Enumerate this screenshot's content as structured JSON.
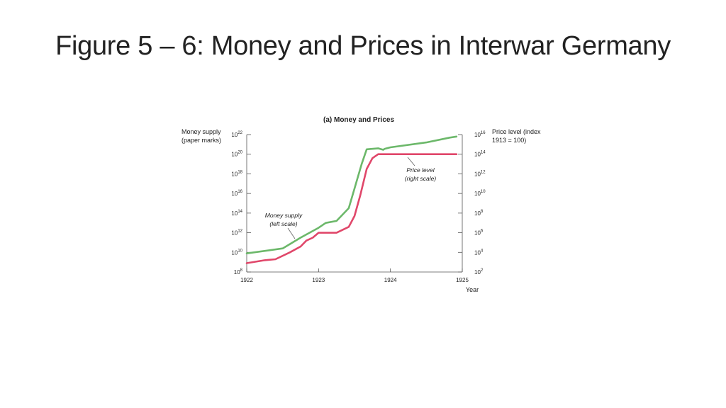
{
  "slide": {
    "title": "Figure 5 – 6: Money and Prices in Interwar Germany"
  },
  "colors": {
    "money_line": "#6cb86a",
    "price_line": "#e0476a"
  },
  "chart_data": {
    "type": "line",
    "title": "(a) Money and Prices",
    "xlabel": "Year",
    "x_ticks": [
      "1922",
      "1923",
      "1924",
      "1925"
    ],
    "xlim": [
      1922,
      1925
    ],
    "left_axis": {
      "label_line1": "Money supply",
      "label_line2": "(paper marks)",
      "scale": "log",
      "ylim_exponent": [
        8,
        22
      ],
      "ticks": [
        {
          "exp": 8,
          "base": "10",
          "sup": "8"
        },
        {
          "exp": 10,
          "base": "10",
          "sup": "10"
        },
        {
          "exp": 12,
          "base": "10",
          "sup": "12"
        },
        {
          "exp": 14,
          "base": "10",
          "sup": "14"
        },
        {
          "exp": 16,
          "base": "10",
          "sup": "16"
        },
        {
          "exp": 18,
          "base": "10",
          "sup": "18"
        },
        {
          "exp": 20,
          "base": "10",
          "sup": "20"
        },
        {
          "exp": 22,
          "base": "10",
          "sup": "22"
        }
      ]
    },
    "right_axis": {
      "label_line1": "Price level (index",
      "label_line2": "1913 = 100)",
      "scale": "log",
      "ylim_exponent": [
        2,
        16
      ],
      "ticks": [
        {
          "exp": 2,
          "base": "10",
          "sup": "2"
        },
        {
          "exp": 4,
          "base": "10",
          "sup": "4"
        },
        {
          "exp": 6,
          "base": "10",
          "sup": "6"
        },
        {
          "exp": 8,
          "base": "10",
          "sup": "8"
        },
        {
          "exp": 10,
          "base": "10",
          "sup": "10"
        },
        {
          "exp": 12,
          "base": "10",
          "sup": "12"
        },
        {
          "exp": 14,
          "base": "10",
          "sup": "14"
        },
        {
          "exp": 16,
          "base": "10",
          "sup": "16"
        }
      ]
    },
    "series": [
      {
        "name": "Money supply",
        "axis": "left",
        "x": [
          1922.0,
          1922.5,
          1922.75,
          1923.0,
          1923.1,
          1923.25,
          1923.42,
          1923.5,
          1923.6,
          1923.67,
          1923.83,
          1923.9,
          1923.92,
          1924.0,
          1924.5,
          1924.83,
          1924.92
        ],
        "y_exponent": [
          9.9,
          10.4,
          11.5,
          12.5,
          13.0,
          13.2,
          14.5,
          16.5,
          19.0,
          20.5,
          20.6,
          20.45,
          20.55,
          20.7,
          21.2,
          21.7,
          21.8
        ]
      },
      {
        "name": "Price level",
        "axis": "right",
        "x": [
          1922.0,
          1922.25,
          1922.4,
          1922.6,
          1922.75,
          1922.83,
          1922.92,
          1923.0,
          1923.25,
          1923.42,
          1923.5,
          1923.58,
          1923.67,
          1923.75,
          1923.83,
          1924.0,
          1924.5,
          1924.92
        ],
        "y_exponent": [
          2.9,
          3.2,
          3.3,
          4.0,
          4.6,
          5.2,
          5.5,
          6.0,
          6.0,
          6.6,
          7.7,
          9.8,
          12.5,
          13.6,
          14.0,
          14.0,
          14.0,
          14.0
        ]
      }
    ],
    "annotations": [
      {
        "series": "Money supply",
        "line1": "Money supply",
        "line2": "(left scale)"
      },
      {
        "series": "Price level",
        "line1": "Price level",
        "line2": "(right scale)"
      }
    ]
  }
}
